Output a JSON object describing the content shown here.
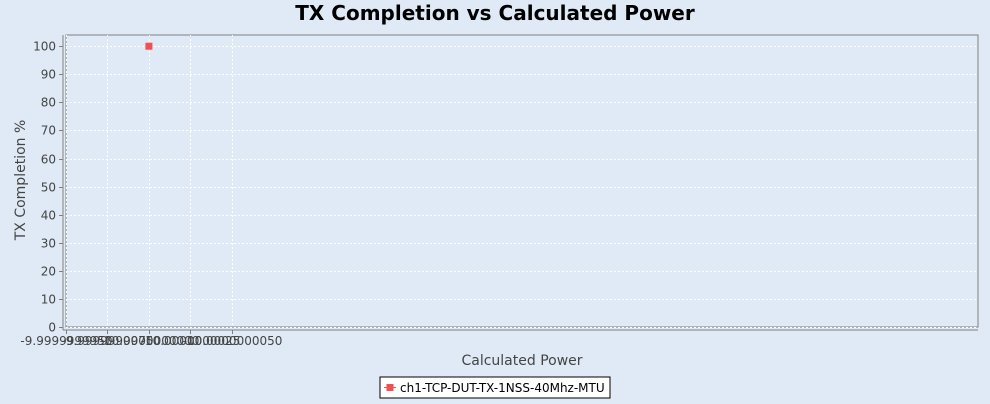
{
  "chart_data": {
    "type": "scatter",
    "title": "TX Completion vs Calculated Power",
    "xlabel": "Calculated Power",
    "ylabel": "TX Completion %",
    "xlim": [
      -9.999999995,
      -10.00000005
    ],
    "ylim": [
      0,
      104
    ],
    "x_ticks": [
      -9.999999995,
      -9.9999999975,
      -10.0,
      -10.0000000025,
      -10.000000005
    ],
    "x_tick_labels": [
      "-9.9999999950",
      "-9.9999999975",
      "-10.0000000000",
      "-10.0000000025",
      "-10.0000000050"
    ],
    "y_ticks": [
      0,
      10,
      20,
      30,
      40,
      50,
      60,
      70,
      80,
      90,
      100
    ],
    "y_tick_labels": [
      "0",
      "10",
      "20",
      "30",
      "40",
      "50",
      "60",
      "70",
      "80",
      "90",
      "100"
    ],
    "grid": true,
    "legend_position": "bottom",
    "series": [
      {
        "name": "ch1-TCP-DUT-TX-1NSS-40Mhz-MTU",
        "color": "#f05050",
        "marker": "square",
        "points": [
          {
            "x": -10.0,
            "y": 100
          }
        ]
      }
    ]
  },
  "colors": {
    "background": "#dfeaf6",
    "plot_background": "#dfeaf6",
    "grid": "#ffffff",
    "axis": "#808080"
  }
}
